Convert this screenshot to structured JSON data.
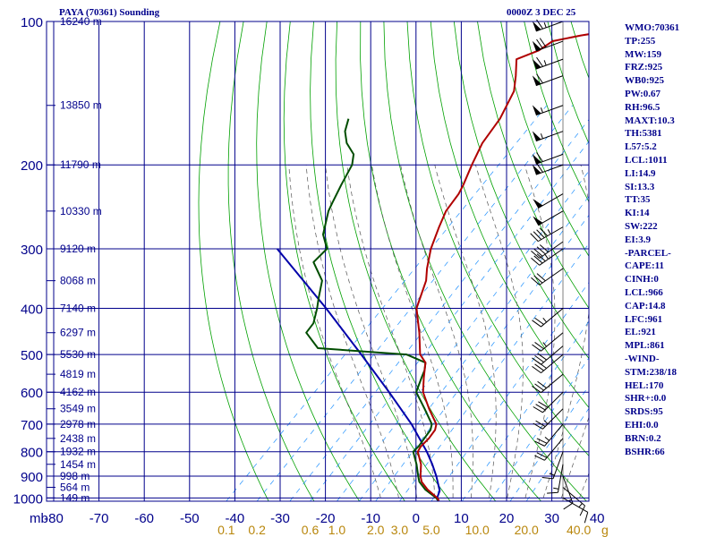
{
  "header": {
    "title": "PAYA (70361) Sounding",
    "time": "0000Z  3 DEC 25"
  },
  "stats": [
    "WMO:70361",
    "TP:255",
    "MW:159",
    "FRZ:925",
    "WB0:925",
    "PW:0.67",
    "RH:96.5",
    "MAXT:10.3",
    "TH:5381",
    "L57:5.2",
    "LCL:1011",
    "LI:14.9",
    "SI:13.3",
    "TT:35",
    "KI:14",
    "SW:222",
    "EI:3.9",
    "-PARCEL-",
    "CAPE:11",
    "CINH:0",
    "LCL:966",
    "CAP:14.8",
    "LFC:961",
    "EL:921",
    "MPL:861",
    "-WIND-",
    "STM:238/18",
    "HEL:170",
    "SHR+:0.0",
    "SRDS:95",
    "EHI:0.0",
    "BRN:0.2",
    "BSHR:66"
  ],
  "chart_data": {
    "type": "skew-t",
    "y_unit_label": "mb",
    "pressure_levels": [
      100,
      200,
      300,
      400,
      500,
      600,
      700,
      800,
      900,
      1000
    ],
    "pressure_labels": [
      "100",
      "200",
      "300",
      "400",
      "500",
      "600",
      "700",
      "800",
      "900",
      "1000"
    ],
    "temperature_ticks": [
      -80,
      -70,
      -60,
      -50,
      -40,
      -30,
      -20,
      -10,
      0,
      10,
      20,
      30,
      40
    ],
    "temperature_labels": [
      "-80",
      "-70",
      "-60",
      "-50",
      "-40",
      "-30",
      "-20",
      "-10",
      "0",
      "10",
      "20",
      "30",
      "40"
    ],
    "mixing_ratio_labels": [
      {
        "value": 0.1,
        "text": "0.1"
      },
      {
        "value": 0.2,
        "text": "0.2"
      },
      {
        "value": 0.6,
        "text": "0.6"
      },
      {
        "value": 1.0,
        "text": "1.0"
      },
      {
        "value": 2.0,
        "text": "2.0"
      },
      {
        "value": 3.0,
        "text": "3.0"
      },
      {
        "value": 5.0,
        "text": "5.0"
      },
      {
        "value": 10.0,
        "text": "10.0"
      },
      {
        "value": 20.0,
        "text": "20.0"
      },
      {
        "value": 40.0,
        "text": "40.0"
      }
    ],
    "mixing_ratio_unit": "g",
    "heights": [
      {
        "p": 100,
        "text": "16240 m"
      },
      {
        "p": 150,
        "text": "13850 m"
      },
      {
        "p": 200,
        "text": "11790 m"
      },
      {
        "p": 250,
        "text": "10330 m"
      },
      {
        "p": 300,
        "text": "9120 m"
      },
      {
        "p": 350,
        "text": "8068 m"
      },
      {
        "p": 400,
        "text": "7140 m"
      },
      {
        "p": 450,
        "text": "6297 m"
      },
      {
        "p": 500,
        "text": "5530 m"
      },
      {
        "p": 550,
        "text": "4819 m"
      },
      {
        "p": 600,
        "text": "4162 m"
      },
      {
        "p": 650,
        "text": "3549 m"
      },
      {
        "p": 700,
        "text": "2978 m"
      },
      {
        "p": 750,
        "text": "2438 m"
      },
      {
        "p": 800,
        "text": "1932 m"
      },
      {
        "p": 850,
        "text": "1454 m"
      },
      {
        "p": 900,
        "text": "998 m"
      },
      {
        "p": 950,
        "text": "564 m"
      },
      {
        "p": 1000,
        "text": "149 m"
      }
    ],
    "temperature_profile": [
      [
        1013,
        5.5
      ],
      [
        1000,
        4.5
      ],
      [
        960,
        0.5
      ],
      [
        925,
        -2.5
      ],
      [
        900,
        -4.0
      ],
      [
        850,
        -6.5
      ],
      [
        800,
        -10.0
      ],
      [
        780,
        -10.5
      ],
      [
        750,
        -10.5
      ],
      [
        720,
        -11.0
      ],
      [
        700,
        -12.0
      ],
      [
        650,
        -17.0
      ],
      [
        600,
        -22.0
      ],
      [
        560,
        -25.0
      ],
      [
        520,
        -28.0
      ],
      [
        500,
        -31.0
      ],
      [
        450,
        -36.0
      ],
      [
        400,
        -42.0
      ],
      [
        350,
        -46.0
      ],
      [
        330,
        -48.5
      ],
      [
        300,
        -52.0
      ],
      [
        270,
        -55.0
      ],
      [
        250,
        -57.0
      ],
      [
        230,
        -58.0
      ],
      [
        220,
        -59.0
      ],
      [
        200,
        -61.5
      ],
      [
        180,
        -64.0
      ],
      [
        160,
        -65.5
      ],
      [
        140,
        -68.5
      ],
      [
        130,
        -71.5
      ],
      [
        120,
        -75.0
      ],
      [
        115,
        -72.0
      ],
      [
        110,
        -71.0
      ],
      [
        107,
        -66.0
      ],
      [
        105,
        -61.5
      ],
      [
        103,
        -62.5
      ],
      [
        100,
        -64.0
      ]
    ],
    "dewpoint_profile": [
      [
        1013,
        5.3
      ],
      [
        1000,
        4.3
      ],
      [
        960,
        0.0
      ],
      [
        925,
        -3.0
      ],
      [
        900,
        -4.5
      ],
      [
        850,
        -7.5
      ],
      [
        800,
        -11.0
      ],
      [
        780,
        -11.0
      ],
      [
        750,
        -11.5
      ],
      [
        720,
        -12.0
      ],
      [
        700,
        -13.0
      ],
      [
        650,
        -18.0
      ],
      [
        600,
        -23.5
      ],
      [
        580,
        -24.5
      ],
      [
        560,
        -25.5
      ],
      [
        540,
        -26.5
      ],
      [
        520,
        -28.0
      ],
      [
        500,
        -34.0
      ],
      [
        485,
        -55.0
      ],
      [
        450,
        -61.0
      ],
      [
        430,
        -61.5
      ],
      [
        400,
        -64.0
      ],
      [
        380,
        -66.0
      ],
      [
        350,
        -69.0
      ],
      [
        320,
        -75.0
      ],
      [
        300,
        -75.0
      ],
      [
        280,
        -79.0
      ],
      [
        250,
        -83.0
      ],
      [
        240,
        -84.0
      ],
      [
        220,
        -86.0
      ],
      [
        200,
        -88.0
      ],
      [
        190,
        -90.0
      ],
      [
        180,
        -94.0
      ],
      [
        170,
        -97.0
      ],
      [
        160,
        -99.0
      ]
    ],
    "parcel_profile": [
      [
        1013,
        5.5
      ],
      [
        1000,
        4.5
      ],
      [
        966,
        3.5
      ],
      [
        900,
        -0.5
      ],
      [
        850,
        -4.0
      ],
      [
        800,
        -8.0
      ],
      [
        700,
        -17.5
      ],
      [
        600,
        -29.5
      ],
      [
        500,
        -44.0
      ],
      [
        400,
        -62.0
      ],
      [
        300,
        -86.0
      ]
    ],
    "wind_barbs": [
      {
        "p": 100,
        "dir": 250,
        "spd": 65
      },
      {
        "p": 110,
        "dir": 250,
        "spd": 70
      },
      {
        "p": 120,
        "dir": 250,
        "spd": 65
      },
      {
        "p": 130,
        "dir": 250,
        "spd": 60
      },
      {
        "p": 150,
        "dir": 250,
        "spd": 55
      },
      {
        "p": 170,
        "dir": 250,
        "spd": 55
      },
      {
        "p": 190,
        "dir": 250,
        "spd": 60
      },
      {
        "p": 200,
        "dir": 250,
        "spd": 60
      },
      {
        "p": 230,
        "dir": 240,
        "spd": 50
      },
      {
        "p": 250,
        "dir": 240,
        "spd": 50
      },
      {
        "p": 270,
        "dir": 240,
        "spd": 45
      },
      {
        "p": 290,
        "dir": 235,
        "spd": 40
      },
      {
        "p": 300,
        "dir": 235,
        "spd": 35
      },
      {
        "p": 330,
        "dir": 235,
        "spd": 30
      },
      {
        "p": 400,
        "dir": 230,
        "spd": 25
      },
      {
        "p": 450,
        "dir": 230,
        "spd": 25
      },
      {
        "p": 480,
        "dir": 230,
        "spd": 30
      },
      {
        "p": 500,
        "dir": 230,
        "spd": 30
      },
      {
        "p": 550,
        "dir": 230,
        "spd": 30
      },
      {
        "p": 600,
        "dir": 225,
        "spd": 30
      },
      {
        "p": 650,
        "dir": 225,
        "spd": 25
      },
      {
        "p": 700,
        "dir": 220,
        "spd": 25
      },
      {
        "p": 750,
        "dir": 220,
        "spd": 20
      },
      {
        "p": 800,
        "dir": 200,
        "spd": 15
      },
      {
        "p": 850,
        "dir": 190,
        "spd": 15
      },
      {
        "p": 900,
        "dir": 160,
        "spd": 15
      },
      {
        "p": 950,
        "dir": 130,
        "spd": 15
      },
      {
        "p": 1000,
        "dir": 120,
        "spd": 10
      }
    ],
    "colors": {
      "grid": "#00008b",
      "dry_adiabat": "#00a000",
      "moist_adiabat": "#555555",
      "mixing_ratio": "#1e90ff",
      "temperature": "#b00000",
      "dewpoint": "#004d00",
      "parcel": "#0000aa",
      "mixing_label": "#b8860b",
      "text": "#00008b"
    }
  }
}
